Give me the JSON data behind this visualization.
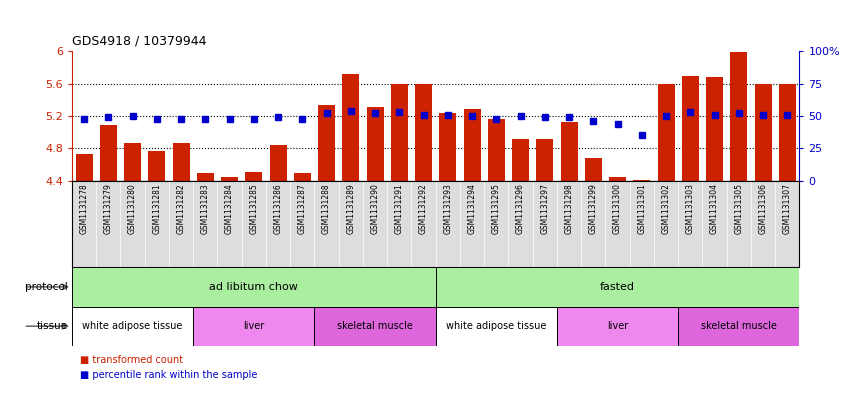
{
  "title": "GDS4918 / 10379944",
  "samples": [
    "GSM1131278",
    "GSM1131279",
    "GSM1131280",
    "GSM1131281",
    "GSM1131282",
    "GSM1131283",
    "GSM1131284",
    "GSM1131285",
    "GSM1131286",
    "GSM1131287",
    "GSM1131288",
    "GSM1131289",
    "GSM1131290",
    "GSM1131291",
    "GSM1131292",
    "GSM1131293",
    "GSM1131294",
    "GSM1131295",
    "GSM1131296",
    "GSM1131297",
    "GSM1131298",
    "GSM1131299",
    "GSM1131300",
    "GSM1131301",
    "GSM1131302",
    "GSM1131303",
    "GSM1131304",
    "GSM1131305",
    "GSM1131306",
    "GSM1131307"
  ],
  "bar_values": [
    4.73,
    5.09,
    4.86,
    4.77,
    4.87,
    4.49,
    4.45,
    4.51,
    4.84,
    4.49,
    5.34,
    5.72,
    5.31,
    5.59,
    5.59,
    5.24,
    5.29,
    5.16,
    4.91,
    4.92,
    5.13,
    4.68,
    4.45,
    4.41,
    5.6,
    5.69,
    5.68,
    5.99,
    5.59,
    5.6
  ],
  "blue_values": [
    48,
    49,
    50,
    48,
    48,
    48,
    48,
    48,
    49,
    48,
    52,
    54,
    52,
    53,
    51,
    51,
    50,
    48,
    50,
    49,
    49,
    46,
    44,
    35,
    50,
    53,
    51,
    52,
    51,
    51
  ],
  "bar_color": "#cc2200",
  "dot_color": "#0000cc",
  "ylim_left": [
    4.4,
    6.0
  ],
  "ylim_right": [
    0,
    100
  ],
  "yticks_left": [
    4.4,
    4.8,
    5.2,
    5.6,
    6.0
  ],
  "ytick_labels_left": [
    "4.4",
    "4.8",
    "5.2",
    "5.6",
    "6"
  ],
  "yticks_right": [
    0,
    25,
    50,
    75,
    100
  ],
  "ytick_labels_right": [
    "0",
    "25",
    "50",
    "75",
    "100%"
  ],
  "hlines": [
    4.8,
    5.2,
    5.6
  ],
  "protocol_labels": [
    {
      "text": "ad libitum chow",
      "start": 0,
      "end": 14
    },
    {
      "text": "fasted",
      "start": 15,
      "end": 29
    }
  ],
  "tissue_labels": [
    {
      "text": "white adipose tissue",
      "start": 0,
      "end": 4,
      "color": "#ffffff"
    },
    {
      "text": "liver",
      "start": 5,
      "end": 9,
      "color": "#ee88ee"
    },
    {
      "text": "skeletal muscle",
      "start": 10,
      "end": 14,
      "color": "#dd66dd"
    },
    {
      "text": "white adipose tissue",
      "start": 15,
      "end": 19,
      "color": "#ffffff"
    },
    {
      "text": "liver",
      "start": 20,
      "end": 24,
      "color": "#ee88ee"
    },
    {
      "text": "skeletal muscle",
      "start": 25,
      "end": 29,
      "color": "#dd66dd"
    }
  ],
  "protocol_color": "#aaeea0",
  "xticklabel_bg": "#dddddd",
  "background_color": "#ffffff"
}
